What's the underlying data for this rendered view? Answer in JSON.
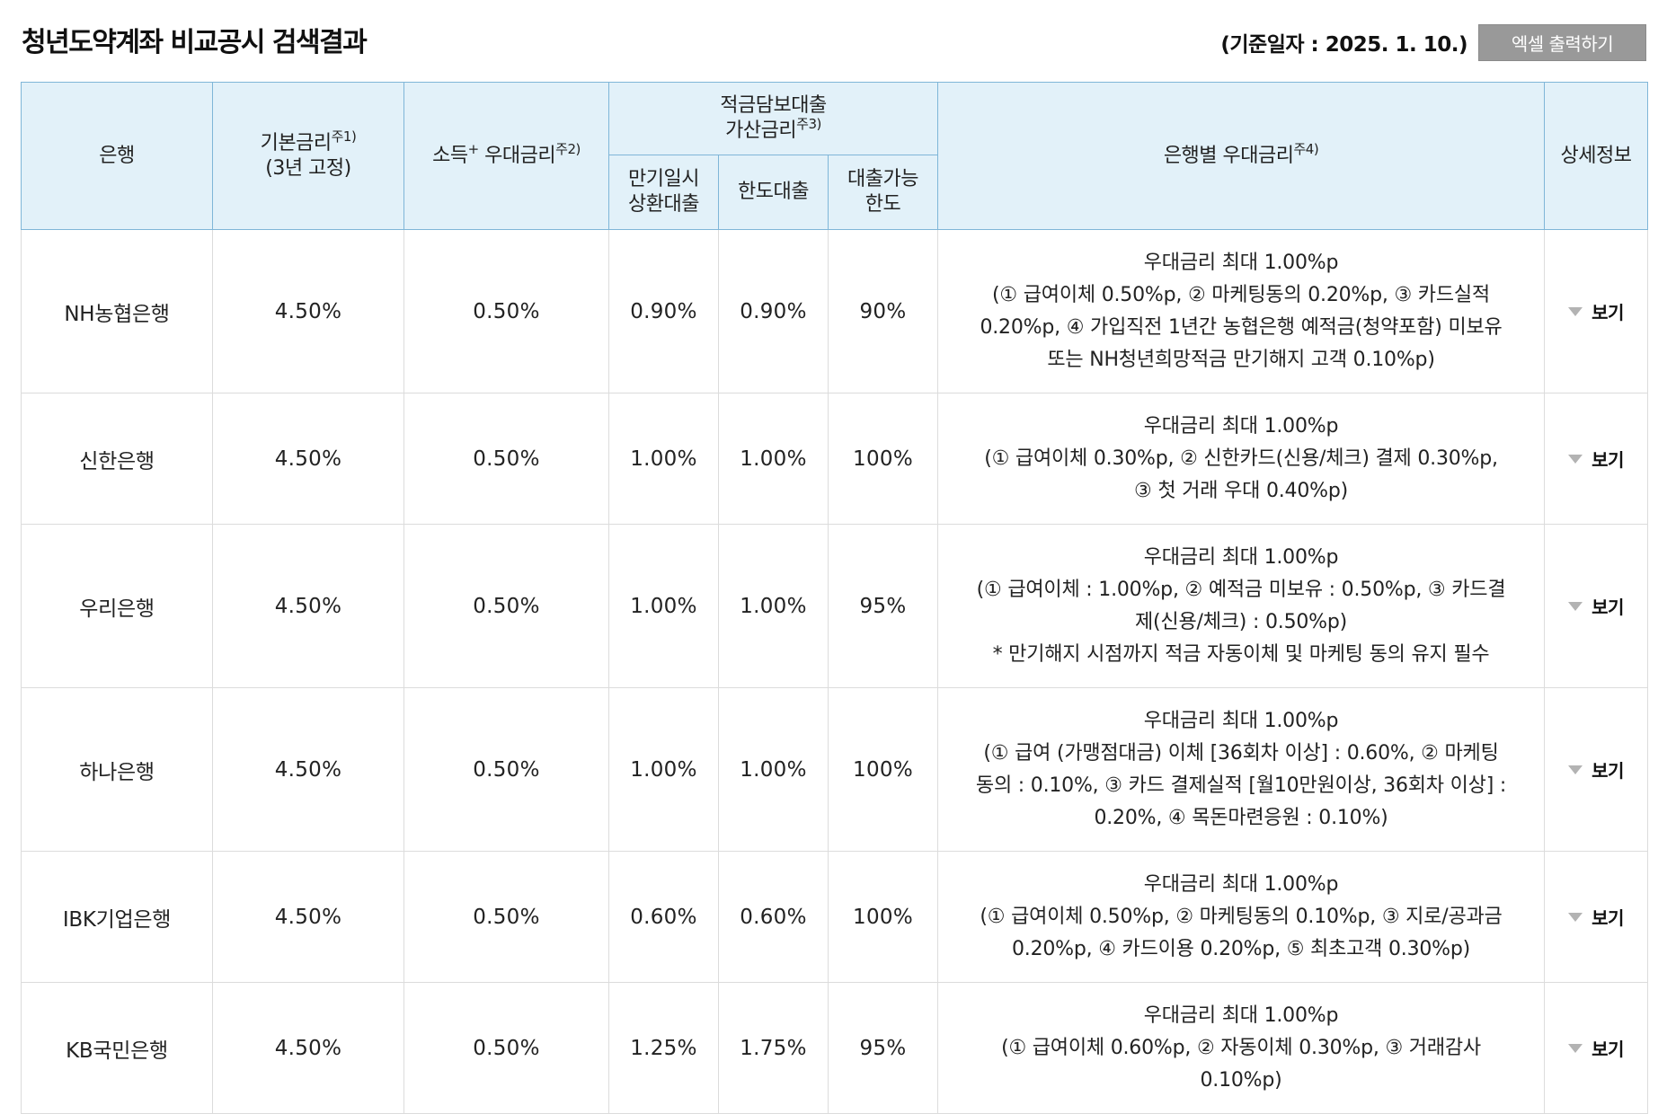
{
  "header": {
    "title": "청년도약계좌 비교공시 검색결과",
    "base_date": "(기준일자 : 2025. 1. 10.)",
    "excel_button": "엑셀 출력하기"
  },
  "table": {
    "columns": {
      "bank": "은행",
      "base_rate": "기본금리",
      "base_rate_note": "주1)",
      "base_rate_sub": "(3년 고정)",
      "income_rate": "소득",
      "income_plus": "+",
      "income_rate_tail": " 우대금리",
      "income_rate_note": "주2)",
      "loan_group_line1": "적금담보대출",
      "loan_group_line2": "가산금리",
      "loan_group_note": "주3)",
      "maturity_line1": "만기일시",
      "maturity_line2": "상환대출",
      "limit_loan": "한도대출",
      "loan_limit_line1": "대출가능",
      "loan_limit_line2": "한도",
      "bank_pref": "은행별 우대금리",
      "bank_pref_note": "주4)",
      "detail": "상세정보"
    },
    "rows": [
      {
        "bank": "NH농협은행",
        "base_rate": "4.50%",
        "income_rate": "0.50%",
        "maturity_loan": "0.90%",
        "limit_loan": "0.90%",
        "loan_limit": "90%",
        "pref_lines": [
          "우대금리 최대 1.00%p",
          "(① 급여이체 0.50%p, ② 마케팅동의 0.20%p, ③ 카드실적",
          "0.20%p, ④ 가입직전 1년간 농협은행 예적금(청약포함) 미보유",
          "또는 NH청년희망적금 만기해지 고객 0.10%p)"
        ],
        "detail": "보기"
      },
      {
        "bank": "신한은행",
        "base_rate": "4.50%",
        "income_rate": "0.50%",
        "maturity_loan": "1.00%",
        "limit_loan": "1.00%",
        "loan_limit": "100%",
        "pref_lines": [
          "우대금리 최대 1.00%p",
          "(① 급여이체 0.30%p, ② 신한카드(신용/체크) 결제 0.30%p,",
          "③ 첫 거래 우대 0.40%p)"
        ],
        "detail": "보기"
      },
      {
        "bank": "우리은행",
        "base_rate": "4.50%",
        "income_rate": "0.50%",
        "maturity_loan": "1.00%",
        "limit_loan": "1.00%",
        "loan_limit": "95%",
        "pref_lines": [
          "우대금리 최대 1.00%p",
          "(① 급여이체 : 1.00%p, ② 예적금 미보유 : 0.50%p, ③ 카드결",
          "제(신용/체크) : 0.50%p)",
          "* 만기해지 시점까지 적금 자동이체 및 마케팅 동의 유지 필수"
        ],
        "detail": "보기"
      },
      {
        "bank": "하나은행",
        "base_rate": "4.50%",
        "income_rate": "0.50%",
        "maturity_loan": "1.00%",
        "limit_loan": "1.00%",
        "loan_limit": "100%",
        "pref_lines": [
          "우대금리 최대 1.00%p",
          "(① 급여 (가맹점대금) 이체 [36회차 이상] : 0.60%, ② 마케팅",
          "동의 : 0.10%, ③ 카드 결제실적 [월10만원이상, 36회차 이상] :",
          "0.20%, ④ 목돈마련응원 : 0.10%)"
        ],
        "detail": "보기"
      },
      {
        "bank": "IBK기업은행",
        "base_rate": "4.50%",
        "income_rate": "0.50%",
        "maturity_loan": "0.60%",
        "limit_loan": "0.60%",
        "loan_limit": "100%",
        "pref_lines": [
          "우대금리 최대 1.00%p",
          "(① 급여이체 0.50%p, ② 마케팅동의 0.10%p, ③ 지로/공과금",
          "0.20%p, ④ 카드이용 0.20%p, ⑤ 최초고객 0.30%p)"
        ],
        "detail": "보기"
      },
      {
        "bank": "KB국민은행",
        "base_rate": "4.50%",
        "income_rate": "0.50%",
        "maturity_loan": "1.25%",
        "limit_loan": "1.75%",
        "loan_limit": "95%",
        "pref_lines": [
          "우대금리 최대 1.00%p",
          "(① 급여이체 0.60%p, ② 자동이체 0.30%p, ③ 거래감사",
          "0.10%p)"
        ],
        "detail": "보기"
      }
    ]
  }
}
